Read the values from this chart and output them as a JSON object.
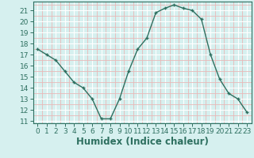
{
  "x": [
    0,
    1,
    2,
    3,
    4,
    5,
    6,
    7,
    8,
    9,
    10,
    11,
    12,
    13,
    14,
    15,
    16,
    17,
    18,
    19,
    20,
    21,
    22,
    23
  ],
  "y": [
    17.5,
    17.0,
    16.5,
    15.5,
    14.5,
    14.0,
    13.0,
    11.2,
    11.2,
    13.0,
    15.5,
    17.5,
    18.5,
    20.8,
    21.2,
    21.5,
    21.2,
    21.0,
    20.2,
    17.0,
    14.8,
    13.5,
    13.0,
    11.8
  ],
  "line_color": "#2e7060",
  "marker": "+",
  "bg_color": "#d6f0ef",
  "grid_major_color": "#ffffff",
  "grid_minor_color": "#e8b8b8",
  "xlabel": "Humidex (Indice chaleur)",
  "xlim": [
    -0.5,
    23.5
  ],
  "ylim": [
    10.8,
    21.8
  ],
  "yticks": [
    11,
    12,
    13,
    14,
    15,
    16,
    17,
    18,
    19,
    20,
    21
  ],
  "xticks": [
    0,
    1,
    2,
    3,
    4,
    5,
    6,
    7,
    8,
    9,
    10,
    11,
    12,
    13,
    14,
    15,
    16,
    17,
    18,
    19,
    20,
    21,
    22,
    23
  ],
  "tick_color": "#2e7060",
  "label_color": "#2e7060",
  "spine_color": "#2e7060",
  "font_size": 6.5,
  "xlabel_font_size": 8.5,
  "linewidth": 1.0,
  "markersize": 3.5,
  "markeredgewidth": 1.0
}
